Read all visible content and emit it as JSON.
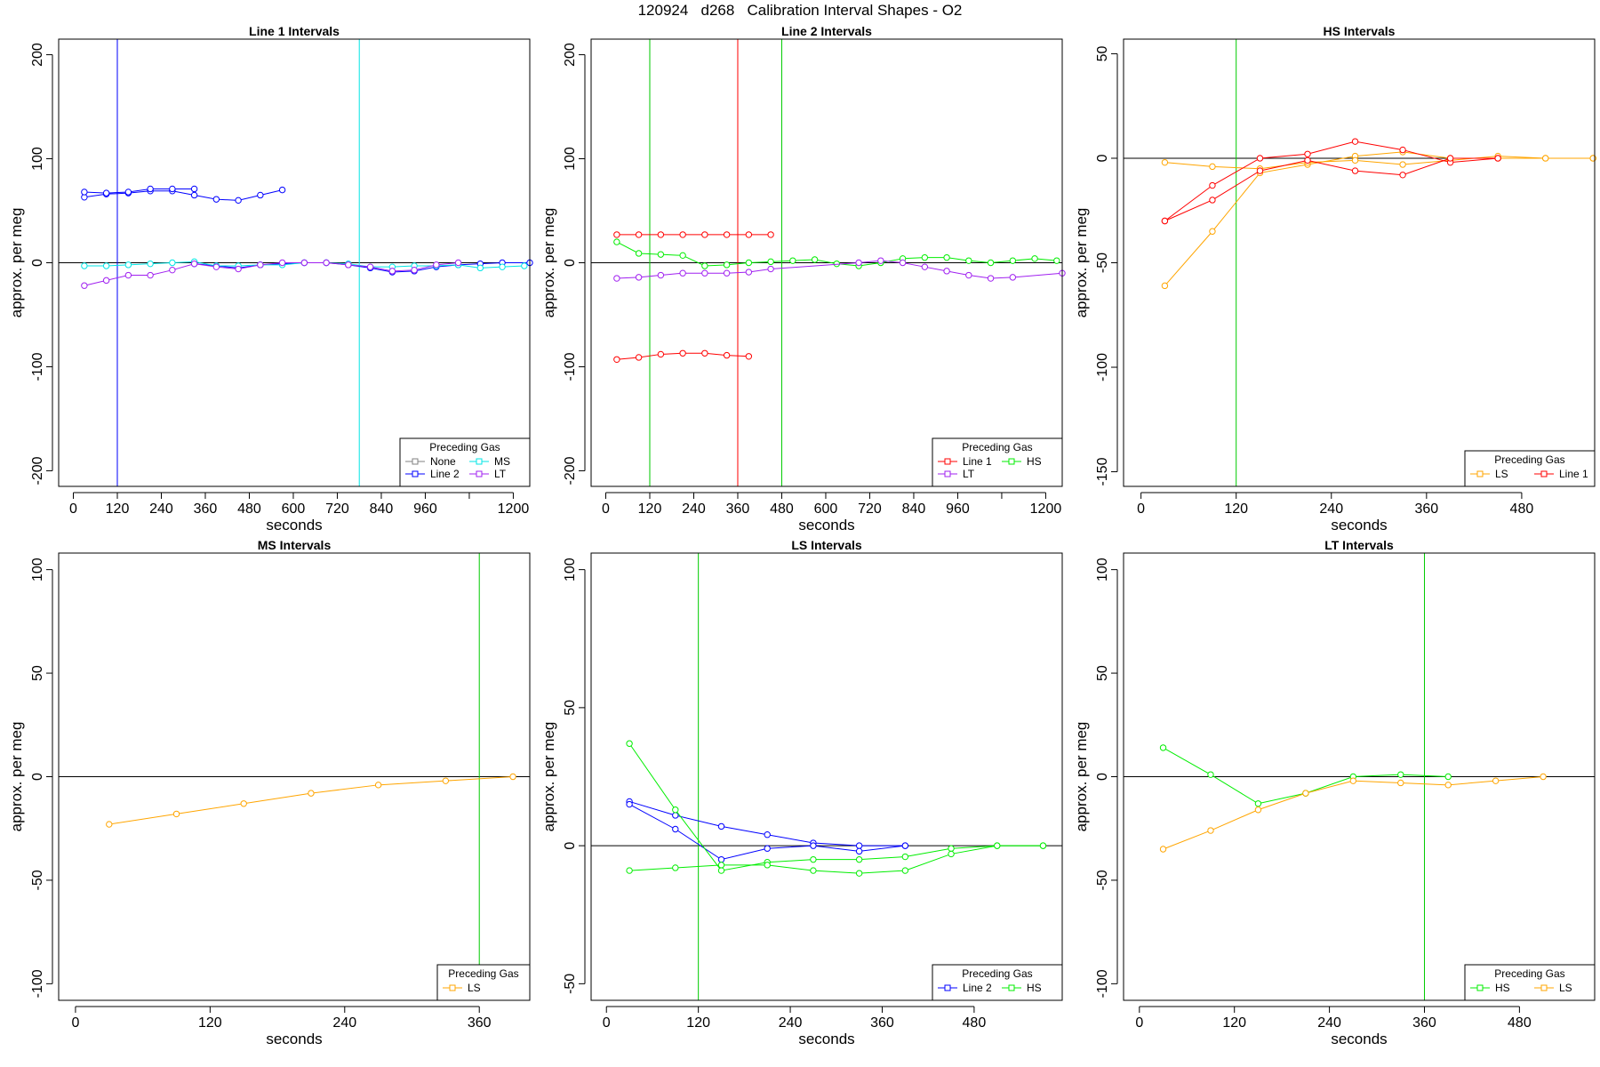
{
  "figure": {
    "title": "120924   d268   Calibration Interval Shapes - O2"
  },
  "chart_data": [
    {
      "type": "line",
      "title": "Line 1 Intervals",
      "xlabel": "seconds",
      "ylabel": "approx. per meg",
      "xlim": [
        -40,
        1245
      ],
      "ylim": [
        -215,
        215
      ],
      "xticks": [
        0,
        120,
        240,
        360,
        480,
        600,
        720,
        840,
        960,
        1080,
        1200
      ],
      "xticklabels": [
        "0",
        "120",
        "240",
        "360",
        "480",
        "600",
        "720",
        "840",
        "960",
        "",
        "1200"
      ],
      "yticks": [
        -200,
        -100,
        0,
        100,
        200
      ],
      "hlines": [
        {
          "y": 0,
          "color": "#000000"
        }
      ],
      "vlines": [
        {
          "x": 120,
          "color": "#000000"
        },
        {
          "x": 120,
          "color": "#0000ff"
        },
        {
          "x": 780,
          "color": "#00e5e5"
        }
      ],
      "legend": {
        "title": "Preceding Gas",
        "position": "bottom-right",
        "columns": 2,
        "entries": [
          {
            "label": "None",
            "color": "#808080"
          },
          {
            "label": "MS",
            "color": "#00e5e5"
          },
          {
            "label": "Line 2",
            "color": "#0000ff"
          },
          {
            "label": "LT",
            "color": "#a020f0"
          }
        ]
      },
      "series": [
        {
          "color": "#0000ff",
          "x": [
            30,
            90,
            150,
            210,
            270,
            330,
            390,
            450,
            510,
            570
          ],
          "y": [
            63,
            66,
            67,
            69,
            69,
            65,
            61,
            60,
            65,
            70
          ]
        },
        {
          "color": "#0000ff",
          "x": [
            30,
            90,
            150,
            210,
            270,
            330
          ],
          "y": [
            68,
            67,
            68,
            71,
            71,
            71
          ]
        },
        {
          "color": "#0000ff",
          "x": [
            330,
            390,
            450,
            510,
            570,
            630,
            690,
            750,
            810,
            870,
            930,
            990,
            1050,
            1110,
            1170,
            1245
          ],
          "y": [
            -1,
            -3,
            -5,
            -2,
            -1,
            0,
            0,
            -2,
            -5,
            -9,
            -8,
            -4,
            -2,
            -1,
            0,
            0
          ]
        },
        {
          "color": "#00e5e5",
          "x": [
            30,
            90,
            150,
            210,
            270,
            330,
            390,
            450,
            510,
            570,
            630,
            690,
            750,
            810,
            870,
            930,
            990,
            1050,
            1110,
            1170,
            1230
          ],
          "y": [
            -3,
            -3,
            -2,
            -1,
            0,
            1,
            -3,
            -3,
            -2,
            -2,
            0,
            0,
            -1,
            -4,
            -4,
            -3,
            -3,
            -2,
            -5,
            -4,
            -3
          ]
        },
        {
          "color": "#a020f0",
          "x": [
            30,
            90,
            150,
            210,
            270,
            330,
            390,
            450,
            510,
            570,
            630,
            690,
            750,
            810,
            870,
            930,
            990,
            1050
          ],
          "y": [
            -22,
            -17,
            -12,
            -12,
            -7,
            -1,
            -4,
            -6,
            -2,
            0,
            0,
            0,
            -2,
            -4,
            -8,
            -7,
            -2,
            0
          ]
        }
      ]
    },
    {
      "type": "line",
      "title": "Line 2 Intervals",
      "xlabel": "seconds",
      "ylabel": "approx. per meg",
      "xlim": [
        -40,
        1245
      ],
      "ylim": [
        -215,
        215
      ],
      "xticks": [
        0,
        120,
        240,
        360,
        480,
        600,
        720,
        840,
        960,
        1080,
        1200
      ],
      "xticklabels": [
        "0",
        "120",
        "240",
        "360",
        "480",
        "600",
        "720",
        "840",
        "960",
        "",
        "1200"
      ],
      "yticks": [
        -200,
        -100,
        0,
        100,
        200
      ],
      "hlines": [
        {
          "y": 0,
          "color": "#000000"
        }
      ],
      "vlines": [
        {
          "x": 120,
          "color": "#000000"
        },
        {
          "x": 120,
          "color": "#00cc00"
        },
        {
          "x": 360,
          "color": "#ff0000"
        },
        {
          "x": 480,
          "color": "#00cc00"
        }
      ],
      "legend": {
        "title": "Preceding Gas",
        "position": "bottom-right",
        "columns": 2,
        "entries": [
          {
            "label": "Line 1",
            "color": "#ff0000"
          },
          {
            "label": "HS",
            "color": "#00ee00"
          },
          {
            "label": "LT",
            "color": "#a020f0"
          }
        ]
      },
      "series": [
        {
          "color": "#ff0000",
          "x": [
            30,
            90,
            150,
            210,
            270,
            330,
            390,
            450
          ],
          "y": [
            27,
            27,
            27,
            27,
            27,
            27,
            27,
            27
          ]
        },
        {
          "color": "#ff0000",
          "x": [
            30,
            90,
            150,
            210,
            270,
            330,
            390
          ],
          "y": [
            -93,
            -91,
            -88,
            -87,
            -87,
            -89,
            -90
          ]
        },
        {
          "color": "#00ee00",
          "x": [
            30,
            90,
            150,
            210,
            270,
            330,
            390,
            450,
            510,
            570,
            630,
            690,
            750,
            810,
            870,
            930,
            990,
            1050,
            1110,
            1170,
            1230
          ],
          "y": [
            20,
            9,
            8,
            7,
            -3,
            -2,
            0,
            1,
            2,
            3,
            -1,
            -3,
            0,
            4,
            5,
            5,
            2,
            0,
            2,
            4,
            2
          ]
        },
        {
          "color": "#a020f0",
          "x": [
            30,
            90,
            150,
            210,
            270,
            330,
            390,
            450,
            690,
            750,
            810,
            870,
            930,
            990,
            1050,
            1110,
            1245
          ],
          "y": [
            -15,
            -14,
            -12,
            -10,
            -10,
            -10,
            -9,
            -6,
            0,
            2,
            0,
            -4,
            -8,
            -12,
            -15,
            -14,
            -10
          ]
        }
      ]
    },
    {
      "type": "line",
      "title": "HS Intervals",
      "xlabel": "seconds",
      "ylabel": "approx. per meg",
      "xlim": [
        -22,
        572
      ],
      "ylim": [
        -157,
        57
      ],
      "xticks": [
        0,
        120,
        240,
        360,
        480
      ],
      "xticklabels": [
        "0",
        "120",
        "240",
        "360",
        "480"
      ],
      "yticks": [
        -150,
        -100,
        -50,
        0,
        50
      ],
      "hlines": [
        {
          "y": 0,
          "color": "#000000"
        }
      ],
      "vlines": [
        {
          "x": 120,
          "color": "#00cc00"
        }
      ],
      "legend": {
        "title": "Preceding Gas",
        "position": "bottom-right",
        "columns": 2,
        "entries": [
          {
            "label": "LS",
            "color": "#ffa500"
          },
          {
            "label": "Line 1",
            "color": "#ff0000"
          }
        ]
      },
      "series": [
        {
          "color": "#ffa500",
          "x": [
            30,
            90,
            150,
            210,
            270,
            330,
            390,
            450,
            510,
            570
          ],
          "y": [
            -61,
            -35,
            -7,
            -3,
            1,
            3,
            0,
            0,
            0,
            0
          ]
        },
        {
          "color": "#ffa500",
          "x": [
            30,
            90,
            150,
            210,
            270,
            330,
            390,
            450,
            510,
            570
          ],
          "y": [
            -2,
            -4,
            -5,
            -2,
            -1,
            -3,
            -1,
            1,
            0,
            0
          ]
        },
        {
          "color": "#ff0000",
          "x": [
            30,
            90,
            150,
            210,
            270,
            330,
            390,
            450
          ],
          "y": [
            -30,
            -13,
            0,
            2,
            8,
            4,
            -2,
            0
          ]
        },
        {
          "color": "#ff0000",
          "x": [
            30,
            90,
            150,
            210,
            270,
            330,
            390,
            450
          ],
          "y": [
            -30,
            -20,
            -6,
            -1,
            -6,
            -8,
            0,
            0
          ]
        }
      ]
    },
    {
      "type": "line",
      "title": "MS Intervals",
      "xlabel": "seconds",
      "ylabel": "approx. per meg",
      "xlim": [
        -15,
        405
      ],
      "ylim": [
        -108,
        108
      ],
      "xticks": [
        0,
        120,
        240,
        360
      ],
      "xticklabels": [
        "0",
        "120",
        "240",
        "360"
      ],
      "yticks": [
        -100,
        -50,
        0,
        50,
        100
      ],
      "hlines": [
        {
          "y": 0,
          "color": "#000000"
        }
      ],
      "vlines": [
        {
          "x": 360,
          "color": "#00cc00"
        }
      ],
      "legend": {
        "title": "Preceding Gas",
        "position": "bottom-right",
        "columns": 1,
        "entries": [
          {
            "label": "LS",
            "color": "#ffa500"
          }
        ]
      },
      "series": [
        {
          "color": "#ffa500",
          "x": [
            30,
            90,
            150,
            210,
            270,
            330,
            390
          ],
          "y": [
            -23,
            -18,
            -13,
            -8,
            -4,
            -2,
            0
          ]
        }
      ]
    },
    {
      "type": "line",
      "title": "LS Intervals",
      "xlabel": "seconds",
      "ylabel": "approx. per meg",
      "xlim": [
        -20,
        595
      ],
      "ylim": [
        -56,
        106
      ],
      "xticks": [
        0,
        120,
        240,
        360,
        480
      ],
      "xticklabels": [
        "0",
        "120",
        "240",
        "360",
        "480"
      ],
      "yticks": [
        -50,
        0,
        50,
        100
      ],
      "hlines": [
        {
          "y": 0,
          "color": "#000000"
        }
      ],
      "vlines": [
        {
          "x": 120,
          "color": "#00cc00"
        }
      ],
      "legend": {
        "title": "Preceding Gas",
        "position": "bottom-right",
        "columns": 2,
        "entries": [
          {
            "label": "Line 2",
            "color": "#0000ff"
          },
          {
            "label": "HS",
            "color": "#00ee00"
          }
        ]
      },
      "series": [
        {
          "color": "#0000ff",
          "x": [
            30,
            90,
            150,
            210,
            270,
            330,
            390
          ],
          "y": [
            16,
            11,
            7,
            4,
            1,
            0,
            0
          ]
        },
        {
          "color": "#0000ff",
          "x": [
            30,
            90,
            150,
            210,
            270,
            330,
            390
          ],
          "y": [
            15,
            6,
            -5,
            -1,
            0,
            -2,
            0
          ]
        },
        {
          "color": "#00ee00",
          "x": [
            30,
            90,
            150,
            210,
            270,
            330,
            390,
            450,
            510,
            570
          ],
          "y": [
            37,
            13,
            -9,
            -6,
            -5,
            -5,
            -4,
            -1,
            0,
            0
          ]
        },
        {
          "color": "#00ee00",
          "x": [
            30,
            90,
            150,
            210,
            270,
            330,
            390,
            450,
            510,
            570
          ],
          "y": [
            -9,
            -8,
            -7,
            -7,
            -9,
            -10,
            -9,
            -3,
            0,
            0
          ]
        }
      ]
    },
    {
      "type": "line",
      "title": "LT Intervals",
      "xlabel": "seconds",
      "ylabel": "approx. per meg",
      "xlim": [
        -20,
        575
      ],
      "ylim": [
        -108,
        108
      ],
      "xticks": [
        0,
        120,
        240,
        360,
        480
      ],
      "xticklabels": [
        "0",
        "120",
        "240",
        "360",
        "480"
      ],
      "yticks": [
        -100,
        -50,
        0,
        50,
        100
      ],
      "hlines": [
        {
          "y": 0,
          "color": "#000000"
        }
      ],
      "vlines": [
        {
          "x": 360,
          "color": "#00cc00"
        }
      ],
      "legend": {
        "title": "Preceding Gas",
        "position": "bottom-right",
        "columns": 2,
        "entries": [
          {
            "label": "HS",
            "color": "#00ee00"
          },
          {
            "label": "LS",
            "color": "#ffa500"
          }
        ]
      },
      "series": [
        {
          "color": "#00ee00",
          "x": [
            30,
            90,
            150,
            210,
            270,
            330,
            390
          ],
          "y": [
            14,
            1,
            -13,
            -8,
            0,
            1,
            0
          ]
        },
        {
          "color": "#ffa500",
          "x": [
            30,
            90,
            150,
            210,
            270,
            330,
            390,
            450,
            510
          ],
          "y": [
            -35,
            -26,
            -16,
            -8,
            -2,
            -3,
            -4,
            -2,
            0
          ]
        }
      ]
    }
  ]
}
